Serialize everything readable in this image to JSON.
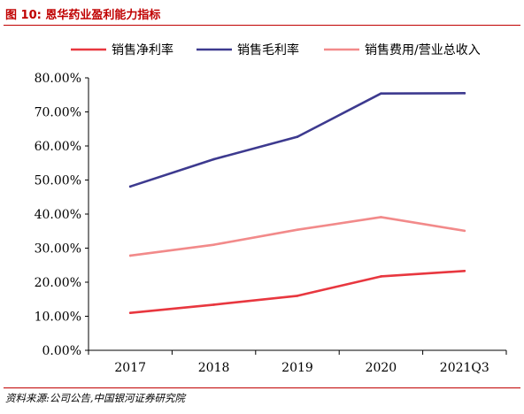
{
  "caption": "图 10:  恩华药业盈利能力指标",
  "source": "资料来源:公司公告,中国银河证券研究院",
  "chart_data": {
    "type": "line",
    "title": "",
    "xlabel": "",
    "ylabel": "",
    "categories": [
      "2017",
      "2018",
      "2019",
      "2020",
      "2021Q3"
    ],
    "ylim": [
      0,
      80
    ],
    "yticks": [
      "0.00%",
      "10.00%",
      "20.00%",
      "30.00%",
      "40.00%",
      "50.00%",
      "60.00%",
      "70.00%",
      "80.00%"
    ],
    "grid": false,
    "legend_position": "top",
    "series": [
      {
        "name": "销售净利率",
        "color": "#e8373f",
        "values": [
          11.0,
          13.4,
          16.0,
          21.7,
          23.3
        ]
      },
      {
        "name": "销售毛利率",
        "color": "#3d3a8f",
        "values": [
          48.1,
          56.1,
          62.7,
          75.4,
          75.5
        ]
      },
      {
        "name": "销售费用/营业总收入",
        "color": "#f28a8a",
        "values": [
          27.8,
          31.0,
          35.4,
          39.1,
          35.1
        ]
      }
    ]
  }
}
